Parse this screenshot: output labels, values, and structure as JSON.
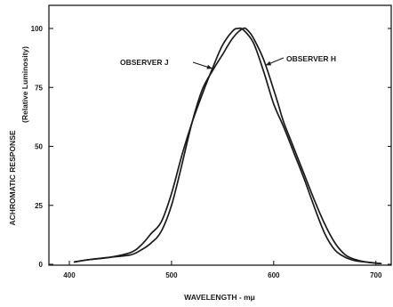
{
  "chart_data": {
    "type": "line",
    "xlabel": "WAVELENGTH - mμ",
    "ylabel": "ACHROMATIC RESPONSE",
    "ylabel_sub": "(Relative Luminosity)",
    "xlim": [
      380,
      715
    ],
    "ylim": [
      0,
      105
    ],
    "x_ticks": [
      400,
      500,
      600,
      700
    ],
    "y_ticks": [
      0,
      25,
      50,
      75,
      100
    ],
    "x_tick_labels": [
      "400",
      "500",
      "600",
      "700"
    ],
    "y_tick_labels": [
      "0",
      "25",
      "50",
      "75",
      "100"
    ],
    "grid": false,
    "series": [
      {
        "name": "OBSERVER J",
        "x": [
          405,
          420,
          440,
          460,
          470,
          480,
          490,
          500,
          510,
          520,
          530,
          540,
          550,
          560,
          565,
          570,
          580,
          590,
          600,
          610,
          620,
          630,
          640,
          650,
          660,
          670,
          680,
          690,
          700,
          705
        ],
        "y": [
          1,
          2,
          3,
          5,
          8,
          13,
          18,
          30,
          46,
          60,
          72,
          83,
          93,
          99,
          100,
          99.5,
          94,
          82,
          68,
          58,
          47,
          36,
          24,
          13,
          6,
          3,
          1.5,
          1,
          0.5,
          0.3
        ]
      },
      {
        "name": "OBSERVER H",
        "x": [
          405,
          420,
          440,
          460,
          470,
          480,
          490,
          500,
          510,
          520,
          530,
          540,
          550,
          560,
          570,
          575,
          580,
          590,
          600,
          605,
          610,
          620,
          630,
          640,
          650,
          660,
          670,
          680,
          690,
          700,
          705
        ],
        "y": [
          1,
          2,
          3,
          4,
          6,
          9,
          14,
          25,
          42,
          60,
          74,
          82,
          89,
          96,
          100,
          99,
          96,
          87,
          74,
          67,
          60,
          49,
          38,
          27,
          17,
          9,
          4,
          2,
          1,
          0.5,
          0.3
        ]
      }
    ],
    "annotations": [
      {
        "text": "OBSERVER J",
        "series": 0,
        "arrow_to_x": 540
      },
      {
        "text": "OBSERVER H",
        "series": 1,
        "arrow_to_x": 592
      }
    ]
  }
}
